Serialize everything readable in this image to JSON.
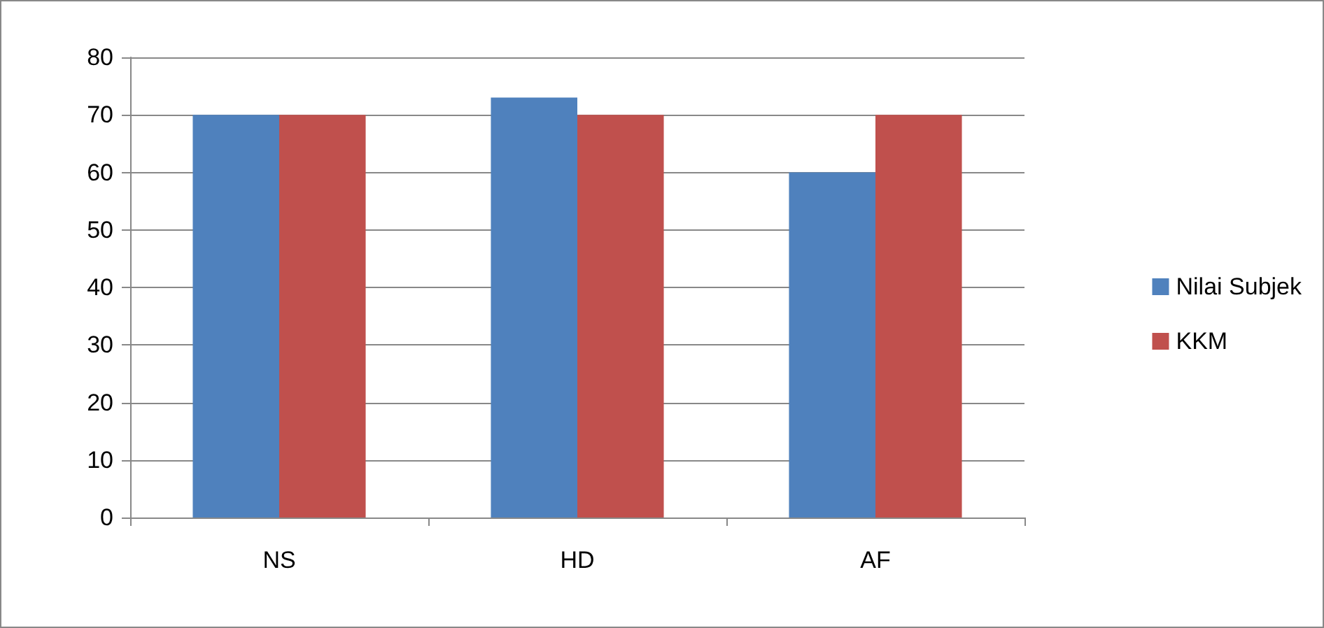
{
  "chart_data": {
    "type": "bar",
    "categories": [
      "NS",
      "HD",
      "AF"
    ],
    "series": [
      {
        "name": "Nilai Subjek",
        "color": "#4f81bd",
        "values": [
          70,
          73,
          60
        ]
      },
      {
        "name": "KKM",
        "color": "#c0504d",
        "values": [
          70,
          70,
          70
        ]
      }
    ],
    "ylim": [
      0,
      80
    ],
    "yticks": [
      0,
      10,
      20,
      30,
      40,
      50,
      60,
      70,
      80
    ],
    "grid": "y",
    "legend": "right"
  }
}
